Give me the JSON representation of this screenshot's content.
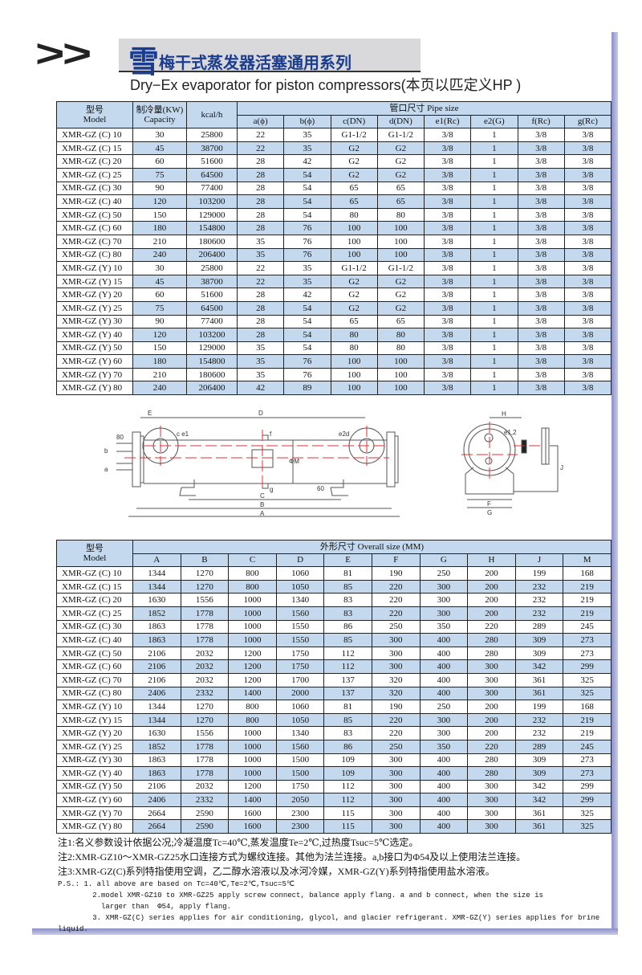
{
  "header": {
    "arrows": ">>",
    "title_big": "雪",
    "title_rest": "梅干式蒸发器活塞通用系列",
    "subtitle": "Dry−Ex evaporator for piston compressors(本页以匹定义HP )"
  },
  "table1": {
    "h_model": "型号",
    "h_model_en": "Model",
    "h_cap": "制冷量(KW)",
    "h_cap_en": "Capacity",
    "h_kcal": "kcal/h",
    "h_pipe": "管口尺寸 Pipe size",
    "sub": [
      "a(ϕ)",
      "b(ϕ)",
      "c(DN)",
      "d(DN)",
      "e1(Rc)",
      "e2(G)",
      "f(Rc)",
      "g(Rc)"
    ],
    "rows": [
      [
        "XMR-GZ (C) 10",
        "30",
        "25800",
        "22",
        "35",
        "G1-1/2",
        "G1-1/2",
        "3/8",
        "1",
        "3/8",
        "3/8"
      ],
      [
        "XMR-GZ (C) 15",
        "45",
        "38700",
        "22",
        "35",
        "G2",
        "G2",
        "3/8",
        "1",
        "3/8",
        "3/8"
      ],
      [
        "XMR-GZ (C) 20",
        "60",
        "51600",
        "28",
        "42",
        "G2",
        "G2",
        "3/8",
        "1",
        "3/8",
        "3/8"
      ],
      [
        "XMR-GZ (C) 25",
        "75",
        "64500",
        "28",
        "54",
        "G2",
        "G2",
        "3/8",
        "1",
        "3/8",
        "3/8"
      ],
      [
        "XMR-GZ (C) 30",
        "90",
        "77400",
        "28",
        "54",
        "65",
        "65",
        "3/8",
        "1",
        "3/8",
        "3/8"
      ],
      [
        "XMR-GZ (C) 40",
        "120",
        "103200",
        "28",
        "54",
        "65",
        "65",
        "3/8",
        "1",
        "3/8",
        "3/8"
      ],
      [
        "XMR-GZ (C) 50",
        "150",
        "129000",
        "28",
        "54",
        "80",
        "80",
        "3/8",
        "1",
        "3/8",
        "3/8"
      ],
      [
        "XMR-GZ (C) 60",
        "180",
        "154800",
        "28",
        "76",
        "100",
        "100",
        "3/8",
        "1",
        "3/8",
        "3/8"
      ],
      [
        "XMR-GZ (C) 70",
        "210",
        "180600",
        "35",
        "76",
        "100",
        "100",
        "3/8",
        "1",
        "3/8",
        "3/8"
      ],
      [
        "XMR-GZ (C) 80",
        "240",
        "206400",
        "35",
        "76",
        "100",
        "100",
        "3/8",
        "1",
        "3/8",
        "3/8"
      ],
      [
        "XMR-GZ (Y) 10",
        "30",
        "25800",
        "22",
        "35",
        "G1-1/2",
        "G1-1/2",
        "3/8",
        "1",
        "3/8",
        "3/8"
      ],
      [
        "XMR-GZ (Y) 15",
        "45",
        "38700",
        "22",
        "35",
        "G2",
        "G2",
        "3/8",
        "1",
        "3/8",
        "3/8"
      ],
      [
        "XMR-GZ (Y) 20",
        "60",
        "51600",
        "28",
        "42",
        "G2",
        "G2",
        "3/8",
        "1",
        "3/8",
        "3/8"
      ],
      [
        "XMR-GZ (Y) 25",
        "75",
        "64500",
        "28",
        "54",
        "G2",
        "G2",
        "3/8",
        "1",
        "3/8",
        "3/8"
      ],
      [
        "XMR-GZ (Y) 30",
        "90",
        "77400",
        "28",
        "54",
        "65",
        "65",
        "3/8",
        "1",
        "3/8",
        "3/8"
      ],
      [
        "XMR-GZ (Y) 40",
        "120",
        "103200",
        "28",
        "54",
        "80",
        "80",
        "3/8",
        "1",
        "3/8",
        "3/8"
      ],
      [
        "XMR-GZ (Y) 50",
        "150",
        "129000",
        "35",
        "54",
        "80",
        "80",
        "3/8",
        "1",
        "3/8",
        "3/8"
      ],
      [
        "XMR-GZ (Y) 60",
        "180",
        "154800",
        "35",
        "76",
        "100",
        "100",
        "3/8",
        "1",
        "3/8",
        "3/8"
      ],
      [
        "XMR-GZ (Y) 70",
        "210",
        "180600",
        "35",
        "76",
        "100",
        "100",
        "3/8",
        "1",
        "3/8",
        "3/8"
      ],
      [
        "XMR-GZ (Y) 80",
        "240",
        "206400",
        "42",
        "89",
        "100",
        "100",
        "3/8",
        "1",
        "3/8",
        "3/8"
      ]
    ]
  },
  "diagram": {
    "labels": {
      "E": "E",
      "D": "D",
      "c_e1": "c e1",
      "e2d": "e2d",
      "f": "f",
      "g": "g",
      "b": "b",
      "a": "a",
      "d80": "80",
      "phiM": "ΦM",
      "d60": "60",
      "C": "C",
      "B": "B",
      "A": "A",
      "H": "H",
      "e12": "e1,2",
      "J": "J",
      "F": "F",
      "G": "G"
    },
    "line_color": "#555555",
    "center_color": "#e53030"
  },
  "table2": {
    "h_model": "型号",
    "h_model_en": "Model",
    "h_size": "外形尺寸 Overall size (MM)",
    "sub": [
      "A",
      "B",
      "C",
      "D",
      "E",
      "F",
      "G",
      "H",
      "J",
      "M"
    ],
    "rows": [
      [
        "XMR-GZ (C) 10",
        "1344",
        "1270",
        "800",
        "1060",
        "81",
        "190",
        "250",
        "200",
        "199",
        "168"
      ],
      [
        "XMR-GZ (C) 15",
        "1344",
        "1270",
        "800",
        "1050",
        "85",
        "220",
        "300",
        "200",
        "232",
        "219"
      ],
      [
        "XMR-GZ (C) 20",
        "1630",
        "1556",
        "1000",
        "1340",
        "83",
        "220",
        "300",
        "200",
        "232",
        "219"
      ],
      [
        "XMR-GZ (C) 25",
        "1852",
        "1778",
        "1000",
        "1560",
        "83",
        "220",
        "300",
        "200",
        "232",
        "219"
      ],
      [
        "XMR-GZ (C) 30",
        "1863",
        "1778",
        "1000",
        "1550",
        "86",
        "250",
        "350",
        "220",
        "289",
        "245"
      ],
      [
        "XMR-GZ (C) 40",
        "1863",
        "1778",
        "1000",
        "1550",
        "85",
        "300",
        "400",
        "280",
        "309",
        "273"
      ],
      [
        "XMR-GZ (C) 50",
        "2106",
        "2032",
        "1200",
        "1750",
        "112",
        "300",
        "400",
        "280",
        "309",
        "273"
      ],
      [
        "XMR-GZ (C) 60",
        "2106",
        "2032",
        "1200",
        "1750",
        "112",
        "300",
        "400",
        "300",
        "342",
        "299"
      ],
      [
        "XMR-GZ (C) 70",
        "2106",
        "2032",
        "1200",
        "1700",
        "137",
        "320",
        "400",
        "300",
        "361",
        "325"
      ],
      [
        "XMR-GZ (C) 80",
        "2406",
        "2332",
        "1400",
        "2000",
        "137",
        "320",
        "400",
        "300",
        "361",
        "325"
      ],
      [
        "XMR-GZ (Y) 10",
        "1344",
        "1270",
        "800",
        "1060",
        "81",
        "190",
        "250",
        "200",
        "199",
        "168"
      ],
      [
        "XMR-GZ (Y) 15",
        "1344",
        "1270",
        "800",
        "1050",
        "85",
        "220",
        "300",
        "200",
        "232",
        "219"
      ],
      [
        "XMR-GZ (Y) 20",
        "1630",
        "1556",
        "1000",
        "1340",
        "83",
        "220",
        "300",
        "200",
        "232",
        "219"
      ],
      [
        "XMR-GZ (Y) 25",
        "1852",
        "1778",
        "1000",
        "1560",
        "86",
        "250",
        "350",
        "220",
        "289",
        "245"
      ],
      [
        "XMR-GZ (Y) 30",
        "1863",
        "1778",
        "1000",
        "1500",
        "109",
        "300",
        "400",
        "280",
        "309",
        "273"
      ],
      [
        "XMR-GZ (Y) 40",
        "1863",
        "1778",
        "1000",
        "1500",
        "109",
        "300",
        "400",
        "280",
        "309",
        "273"
      ],
      [
        "XMR-GZ (Y) 50",
        "2106",
        "2032",
        "1200",
        "1750",
        "112",
        "300",
        "400",
        "300",
        "342",
        "299"
      ],
      [
        "XMR-GZ (Y) 60",
        "2406",
        "2332",
        "1400",
        "2050",
        "112",
        "300",
        "400",
        "300",
        "342",
        "299"
      ],
      [
        "XMR-GZ (Y) 70",
        "2664",
        "2590",
        "1600",
        "2300",
        "115",
        "300",
        "400",
        "300",
        "361",
        "325"
      ],
      [
        "XMR-GZ (Y) 80",
        "2664",
        "2590",
        "1600",
        "2300",
        "115",
        "300",
        "400",
        "300",
        "361",
        "325"
      ]
    ]
  },
  "notes": {
    "n1": "注1:名义参数设计依据公况;冷凝温度Tc=40℃,蒸发温度Te=2℃,过热度Tsuc=5℃选定。",
    "n2": "注2:XMR-GZ10～XMR-GZ25水口连接方式为螺纹连接。其他为法兰连接。a,b接口为Φ54及以上使用法兰连接。",
    "n3": "注3:XMR-GZ(C)系列特指使用空调，乙二醇水溶液以及冰河冷媒，XMR-GZ(Y)系列特指使用盐水溶液。",
    "ps1": "P.S.: 1. all above are based on Tc=40℃,Te=2℃,Tsuc=5℃",
    "ps2": "        2.model XMR-GZ10 to XMR-GZ25 apply screw connect, balance apply flang. a and b connect, when the size is",
    "ps3": "          larger than  Φ54, apply flang.",
    "ps4": "        3. XMR-GZ(C) series applies for air conditioning, glycol, and glacier refrigerant. XMR-GZ(Y) series applies for brine liquid."
  },
  "colors": {
    "header_bg": "#c5d9ee",
    "title": "#1a3d8f",
    "frame": "#8a90c8"
  }
}
